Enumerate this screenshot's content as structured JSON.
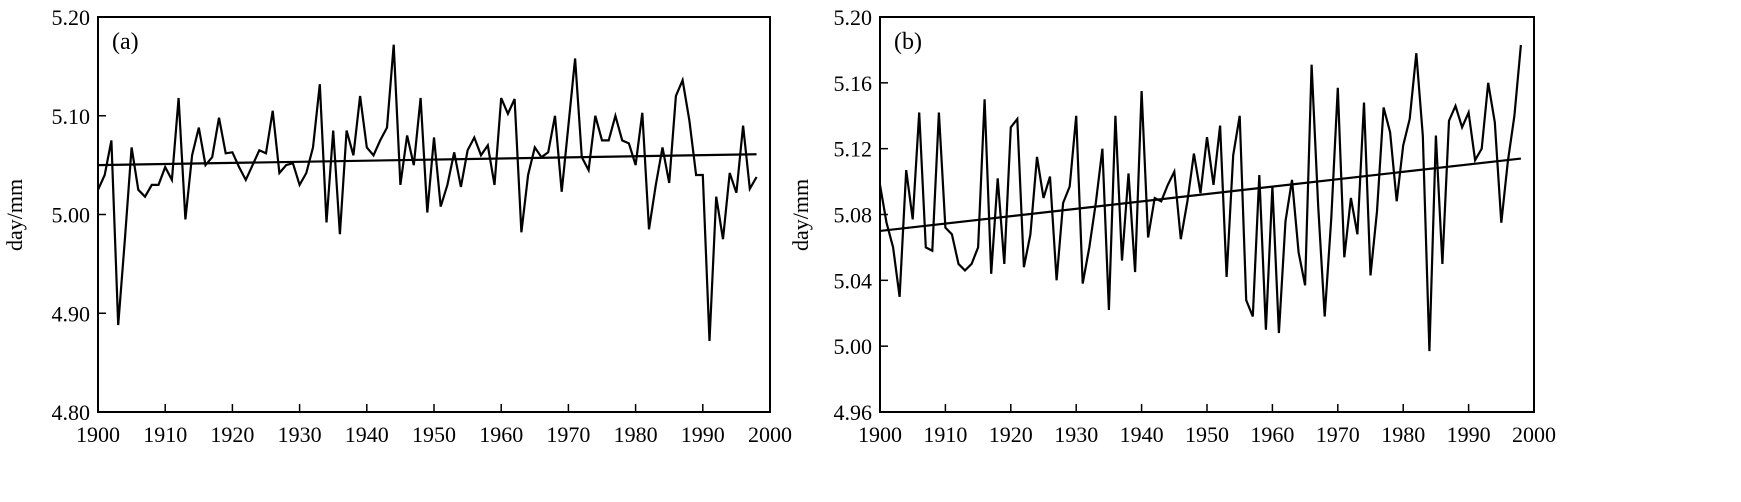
{
  "chart_data": [
    {
      "type": "line",
      "panel_label": "(a)",
      "ylabel": "day/mm",
      "xlim": [
        1900,
        2000
      ],
      "ylim": [
        4.8,
        5.2
      ],
      "x_ticks": [
        1900,
        1910,
        1920,
        1930,
        1940,
        1950,
        1960,
        1970,
        1980,
        1990,
        2000
      ],
      "y_ticks": [
        "4.80",
        "4.90",
        "5.00",
        "5.10",
        "5.20"
      ],
      "grid": false,
      "series": [
        {
          "x": [
            1900,
            1901,
            1902,
            1903,
            1904,
            1905,
            1906,
            1907,
            1908,
            1909,
            1910,
            1911,
            1912,
            1913,
            1914,
            1915,
            1916,
            1917,
            1918,
            1919,
            1920,
            1921,
            1922,
            1923,
            1924,
            1925,
            1926,
            1927,
            1928,
            1929,
            1930,
            1931,
            1932,
            1933,
            1934,
            1935,
            1936,
            1937,
            1938,
            1939,
            1940,
            1941,
            1942,
            1943,
            1944,
            1945,
            1946,
            1947,
            1948,
            1949,
            1950,
            1951,
            1952,
            1953,
            1954,
            1955,
            1956,
            1957,
            1958,
            1959,
            1960,
            1961,
            1962,
            1963,
            1964,
            1965,
            1966,
            1967,
            1968,
            1969,
            1970,
            1971,
            1972,
            1973,
            1974,
            1975,
            1976,
            1977,
            1978,
            1979,
            1980,
            1981,
            1982,
            1983,
            1984,
            1985,
            1986,
            1987,
            1988,
            1989,
            1990,
            1991,
            1992,
            1993,
            1994,
            1995,
            1996,
            1997,
            1998
          ],
          "values": [
            5.025,
            5.04,
            5.075,
            4.888,
            4.975,
            5.068,
            5.025,
            5.018,
            5.03,
            5.03,
            5.048,
            5.035,
            5.118,
            4.995,
            5.06,
            5.088,
            5.05,
            5.058,
            5.098,
            5.062,
            5.063,
            5.048,
            5.035,
            5.05,
            5.065,
            5.062,
            5.105,
            5.042,
            5.05,
            5.052,
            5.03,
            5.042,
            5.068,
            5.132,
            4.992,
            5.085,
            4.98,
            5.085,
            5.06,
            5.12,
            5.068,
            5.06,
            5.075,
            5.088,
            5.172,
            5.03,
            5.08,
            5.05,
            5.118,
            5.002,
            5.078,
            5.008,
            5.03,
            5.063,
            5.028,
            5.065,
            5.078,
            5.06,
            5.07,
            5.03,
            5.118,
            5.102,
            5.117,
            4.982,
            5.04,
            5.068,
            5.058,
            5.063,
            5.1,
            5.023,
            5.09,
            5.158,
            5.058,
            5.045,
            5.1,
            5.075,
            5.075,
            5.1,
            5.075,
            5.072,
            5.05,
            5.103,
            4.985,
            5.03,
            5.068,
            5.032,
            5.12,
            5.136,
            5.095,
            5.04,
            5.04,
            4.872,
            5.018,
            4.975,
            5.042,
            5.022,
            5.09,
            5.026,
            5.038
          ]
        }
      ],
      "trend": {
        "x": [
          1900,
          1998
        ],
        "values": [
          5.05,
          5.061
        ]
      }
    },
    {
      "type": "line",
      "panel_label": "(b)",
      "ylabel": "day/mm",
      "xlim": [
        1900,
        2000
      ],
      "ylim": [
        4.96,
        5.2
      ],
      "x_ticks": [
        1900,
        1910,
        1920,
        1930,
        1940,
        1950,
        1960,
        1970,
        1980,
        1990,
        2000
      ],
      "y_ticks": [
        "4.96",
        "5.00",
        "5.04",
        "5.08",
        "5.12",
        "5.16",
        "5.20"
      ],
      "grid": false,
      "series": [
        {
          "x": [
            1900,
            1901,
            1902,
            1903,
            1904,
            1905,
            1906,
            1907,
            1908,
            1909,
            1910,
            1911,
            1912,
            1913,
            1914,
            1915,
            1916,
            1917,
            1918,
            1919,
            1920,
            1921,
            1922,
            1923,
            1924,
            1925,
            1926,
            1927,
            1928,
            1929,
            1930,
            1931,
            1932,
            1933,
            1934,
            1935,
            1936,
            1937,
            1938,
            1939,
            1940,
            1941,
            1942,
            1943,
            1944,
            1945,
            1946,
            1947,
            1948,
            1949,
            1950,
            1951,
            1952,
            1953,
            1954,
            1955,
            1956,
            1957,
            1958,
            1959,
            1960,
            1961,
            1962,
            1963,
            1964,
            1965,
            1966,
            1967,
            1968,
            1969,
            1970,
            1971,
            1972,
            1973,
            1974,
            1975,
            1976,
            1977,
            1978,
            1979,
            1980,
            1981,
            1982,
            1983,
            1984,
            1985,
            1986,
            1987,
            1988,
            1989,
            1990,
            1991,
            1992,
            1993,
            1994,
            1995,
            1996,
            1997,
            1998
          ],
          "values": [
            5.098,
            5.075,
            5.06,
            5.03,
            5.107,
            5.077,
            5.142,
            5.06,
            5.058,
            5.142,
            5.072,
            5.068,
            5.05,
            5.046,
            5.05,
            5.06,
            5.15,
            5.044,
            5.102,
            5.05,
            5.133,
            5.138,
            5.048,
            5.068,
            5.115,
            5.09,
            5.103,
            5.04,
            5.087,
            5.097,
            5.14,
            5.038,
            5.06,
            5.087,
            5.12,
            5.022,
            5.14,
            5.052,
            5.105,
            5.045,
            5.155,
            5.066,
            5.09,
            5.088,
            5.098,
            5.106,
            5.065,
            5.088,
            5.117,
            5.093,
            5.127,
            5.098,
            5.134,
            5.042,
            5.116,
            5.14,
            5.028,
            5.018,
            5.104,
            5.01,
            5.097,
            5.008,
            5.076,
            5.101,
            5.057,
            5.037,
            5.171,
            5.085,
            5.018,
            5.078,
            5.157,
            5.054,
            5.09,
            5.068,
            5.148,
            5.043,
            5.082,
            5.145,
            5.13,
            5.088,
            5.122,
            5.138,
            5.178,
            5.128,
            4.997,
            5.128,
            5.05,
            5.137,
            5.146,
            5.133,
            5.142,
            5.113,
            5.12,
            5.16,
            5.136,
            5.075,
            5.112,
            5.14,
            5.183
          ]
        }
      ],
      "trend": {
        "x": [
          1900,
          1998
        ],
        "values": [
          5.07,
          5.114
        ]
      }
    }
  ]
}
